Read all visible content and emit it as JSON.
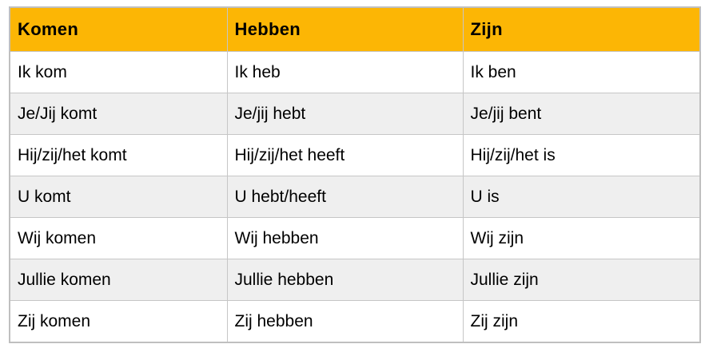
{
  "table": {
    "headers": [
      "Komen",
      "Hebben",
      "Zijn"
    ],
    "rows": [
      [
        "Ik kom",
        "Ik heb",
        "Ik ben"
      ],
      [
        "Je/Jij komt",
        "Je/jij hebt",
        "Je/jij bent"
      ],
      [
        "Hij/zij/het komt",
        "Hij/zij/het heeft",
        "Hij/zij/het is"
      ],
      [
        "U komt",
        "U hebt/heeft",
        "U is"
      ],
      [
        "Wij komen",
        "Wij hebben",
        "Wij zijn"
      ],
      [
        "Jullie komen",
        "Jullie hebben",
        "Jullie zijn"
      ],
      [
        "Zij komen",
        "Zij hebben",
        "Zij zijn"
      ]
    ],
    "colors": {
      "header_bg": "#fcb605",
      "row_bg": "#ffffff",
      "row_alt_bg": "#efefef",
      "border": "#c6c6c6",
      "text": "#000000"
    }
  }
}
